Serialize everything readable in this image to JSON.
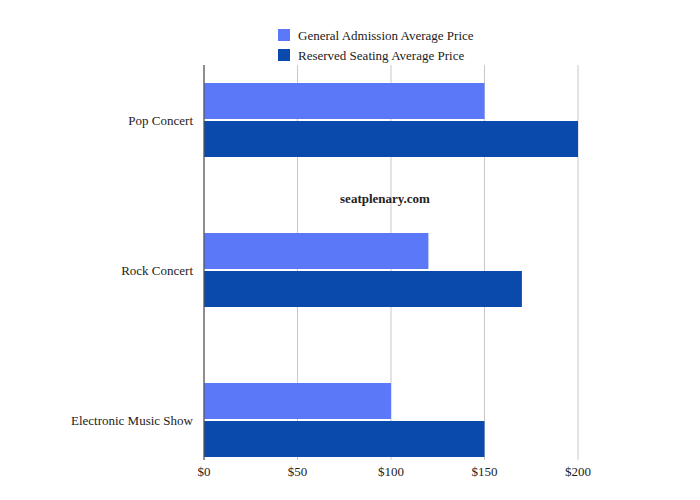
{
  "chart_data": {
    "type": "bar",
    "orientation": "horizontal",
    "categories": [
      "Pop Concert",
      "Rock Concert",
      "Electronic Music Show"
    ],
    "series": [
      {
        "name": "General Admission Average Price",
        "color": "#5b78f8",
        "values": [
          150,
          120,
          100
        ]
      },
      {
        "name": "Reserved Seating Average Price",
        "color": "#0b4aad",
        "values": [
          200,
          170,
          150
        ]
      }
    ],
    "xlim": [
      0,
      200
    ],
    "xticks": [
      {
        "value": 0,
        "label": "$0"
      },
      {
        "value": 50,
        "label": "$50"
      },
      {
        "value": 100,
        "label": "$100"
      },
      {
        "value": 150,
        "label": "$150"
      },
      {
        "value": 200,
        "label": "$200"
      }
    ],
    "grid": true,
    "legend": "top",
    "annotation": "seatplenary.com"
  }
}
